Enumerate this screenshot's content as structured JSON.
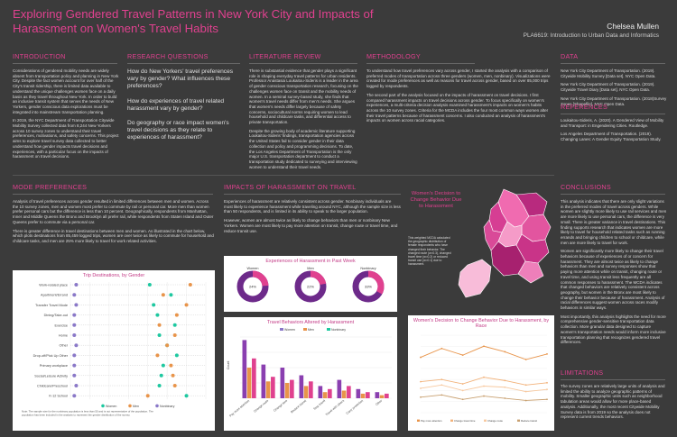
{
  "poster": {
    "title": "Exploring Gendered Travel Patterns in New York City and Impacts of Harassment on Women's Travel Habits",
    "author": "Chelsea Mullen",
    "course": "PLA6619: Introduction to Urban Data and Informatics"
  },
  "headers": {
    "intro": "INTRODUCTION",
    "rq": "RESEARCH QUESTIONS",
    "lit": "LITERATURE REVIEW",
    "method": "METHODOLOGY",
    "data": "DATA",
    "refs": "REFERENCES",
    "mode": "MODE PREFERENCES",
    "impacts": "IMPACTS OF HARASSMENT ON TRAVEL",
    "conclusions": "CONCLUSIONS",
    "limitations": "LIMITATIONS"
  },
  "intro": [
    "Considerations of gendered mobility needs are widely absent from transportation policy and planning in New York City. Despite the fact women account for over half of the City's transit ridership, there is limited data available to understand the unique challenges women face on a daily basis as they travel throughout New York. In order to build an inclusive transit system that serves the needs of New Yorkers, gender conscious data explorations must be integrated into mainstream transportation planning.",
    "In 2019, the NYC Department of Transportation Citywide Mobility Survey collected data from 8,244 New Yorkers across 10 survey zones to understand their travel preferences, motivations, and safety concerns. This project aims to explore travel survey data collected to better understand how gender impacts travel decisions and experiences, with a particular focus on the impacts of harassment on travel decisions."
  ],
  "rq": [
    "How do New Yorkers' travel preferences vary by gender? What influences these preferences?",
    "How do experiences of travel related harassment vary by gender?",
    "Do geography or race impact women's travel decisions as they relate to experiences of harassment?"
  ],
  "lit": [
    "There is substantial evidence that gender plays a significant role in shaping everyday travel patterns for urban residents. Professor Anastasia Loukaitou-Sideris is a leader in the area of gender conscious transportation research, focusing on the challenges women face on transit and the mobility needs of women. In a seminal survey-based study, she finds that women's travel needs differ from men's needs. She argues that women's needs differ largely because of safety concerns, sociocultural norms requiring women to lead household and childcare tasks, and differential access to private transportation.",
    "Despite the growing body of academic literature supporting Loukaitou-Sideris' findings, transportation agencies across the United States fail to consider gender in their data collection and policy and programming decisions. To date, the Los Angeles Department of Transportation is the only major U.S. transportation department to conduct a transportation study dedicated to surveying and interviewing women to understand their travel needs."
  ],
  "method": [
    "To understand how travel preferences vary across gender, I started the analysis with a comparison of preferred modes of transportation across three genders (women, men, nonbinary). Visualizations were created for mode preferences as well as reasons for travel across gender, based on over 85,000 trips logged by respondents.",
    "The second part of the analysis focused on the impacts of harassment on travel decisions. I first compared harassment impacts on travel decisions across gender. To focus specifically on women's experiences, a multi-criteria decision analysis examined harassment's impacts on women's habits across the 10 survey zones. Criteria for the MCDA includes the four most common ways women alter their travel patterns because of harassment concerns. I also conducted an analysis of harassment's impacts on women across racial categories."
  ],
  "data": [
    "New York City Department of Transportation. (2019). Citywide Mobility Survey [Data set]. NYC Open Data.",
    "New York City Department of Transportation. (2019). Citywide Travel Diary [Data set]. NYC Open Data.",
    "New York City Department of Transportation. (2018)Survey Zones [Shapefile]. NYC Open Data."
  ],
  "refs": [
    "Loukaitou-Sideris, A. (2020). A Gendered View of Mobility and Transport: in Engendering Cities. Routledge.",
    "Los Angeles Department of Transportation. (2019). Changing Lanes: A Gender Equity Transportation Study."
  ],
  "mode": [
    "Analysis of travel preferences across gender resulted in limited differences between men and women. Across the 10 survey zones, men and women most prefer to commute by rail or personal car. More men than women prefer personal cars but the difference is less than 10 percent. Geographically, respondents from Manhattan, Inner and Middle Queens the Bronx and Brooklyn all prefer rail, while respondents from Staten Island and Outer Queens prefer to commute via a personal car.",
    "There is greater difference in travel destinations between men and women. As illustrated in the chart below, which plots destinations from 85,459 logged trips, women are over twice as likely to commute for household and childcare tasks, and men are 25% more likely to travel for work related activities."
  ],
  "impacts": [
    "Experiences of harassment are relatively consistent across gender. Nonbinary individuals are most likely to experience harassment while traveling around NYC, although the sample size is less than 50 respondents, and is limited in its ability to speak to the larger population.",
    "However, women are almost twice as likely to change behaviors than men or nonbinary New Yorkers. Women are most likely to pay more attention on transit, change route or travel time, and reduce transit use."
  ],
  "conclusions": [
    "This analysis indicates that there are only slight variations in the preferred modes of travel across genders. While women are slightly more likely to use rail services and men are more likely to use personal cars, the difference is very small. There is greater variance in travel destinations. This finding supports research that indicates women are more likely to travel for household related tasks such as running errands and bringing children to school or childcare, while men are more likely to travel for work.",
    "Women are significantly more likely to change their travel behaviors because of experiences of or concern for harassment. They are almost twice as likely to change behaviors than men and survey responses show that paying more attention while on transit, changing route or travel time, and using transit less frequently are all common responses to harassment. The MCDA indicates that changed behaviors are relatively consistent across geography, but women in the Bronx are most likely to change their behavior because of harassment. Analysis of racial differences suggest women across races modify behaviors in similar ways.",
    "Most importantly, this analysis highlights the need for more comprehensive gender-sensitive transportation data collection. More granular data designed to capture women's transportation needs would inform more inclusive transportation planning that recognizes gendered travel differences."
  ],
  "limitations": [
    "The survey zones are relatively large units of analysis and limited the ability to analyze geographic patterns of mobility. Smaller geographic units such as neighborhood tabulation areas would allow for more place-based analysis. Additionally, the most recent Citywide Mobility Survey data is from 2019 so the analysis does not represent current trends behaviors."
  ],
  "map": {
    "title": "Women's Decision to Change Behavior Due to Harassment",
    "note": "This weighted MCDA calculated the geographic distribution of female respondents who have changed their behavior. The changed route (w=0.3), changed travel time (w=0.2) or reduced transit use (w=0.1) due to harassment."
  },
  "colors": {
    "women": "#1ec8a0",
    "men": "#e8944a",
    "nonbinary": "#8a78c8",
    "accent": "#e0418f"
  },
  "chart_data": [
    {
      "type": "scatter",
      "title": "Trip Destinations, by Gender",
      "categories": [
        "Work-related place",
        "Apartment/Errand",
        "Transfer Travel Mode",
        "Dining/Take-out",
        "Exercise",
        "Home",
        "Other",
        "Drop-off/Pick Up Other",
        "Primary workplace",
        "Social/Leisure Activity",
        "Childcare/Preschool",
        "K-12 School"
      ],
      "series": [
        {
          "name": "Women",
          "values": [
            41,
            52,
            43,
            45,
            54,
            46,
            50,
            55,
            48,
            47,
            46,
            60
          ]
        },
        {
          "name": "Men",
          "values": [
            62,
            48,
            60,
            55,
            46,
            54,
            50,
            45,
            52,
            53,
            54,
            40
          ]
        },
        {
          "name": "Nonbinary",
          "values": [
            3,
            2,
            3,
            2,
            2,
            2,
            3,
            2,
            2,
            2,
            3,
            2
          ]
        }
      ],
      "legend": [
        "Women",
        "Men",
        "Nonbinary"
      ],
      "note": "Note: The sample size for the nonbinary population is less than 50 and is not representative of the population. The population has been included in the analysis to represent the gender distribution of the survey."
    },
    {
      "type": "pie",
      "title": "Experiences of Harassment in Past Week",
      "groups": [
        "Women",
        "Men",
        "Nonbinary"
      ],
      "values": [
        24,
        22,
        33
      ]
    },
    {
      "type": "bar",
      "title": "Travel Behaviors Altered by Harassment",
      "categories": [
        "Pay more attention",
        "Change route",
        "Change time",
        "Reduce transit",
        "Stop travel",
        "Travel with others",
        "Carry protection",
        "Other"
      ],
      "series": [
        {
          "name": "Women",
          "values": [
            38,
            22,
            20,
            15,
            8,
            12,
            6,
            4
          ]
        },
        {
          "name": "Men",
          "values": [
            20,
            11,
            10,
            8,
            4,
            5,
            3,
            2
          ]
        },
        {
          "name": "Nonbinary",
          "values": [
            26,
            14,
            12,
            11,
            6,
            8,
            4,
            3
          ]
        }
      ],
      "ylabel": "Count",
      "ylim": [
        0,
        40
      ]
    },
    {
      "type": "line",
      "title": "Women's Decision to Change Behavior Due to Harassment, by Race",
      "categories": [
        "A",
        "B",
        "C",
        "D",
        "E",
        "F",
        "G"
      ],
      "series": [
        {
          "name": "Pay more attention",
          "values": [
            50,
            58,
            52,
            60,
            55,
            48,
            53
          ]
        },
        {
          "name": "Change travel time",
          "values": [
            28,
            30,
            26,
            32,
            29,
            25,
            27
          ]
        },
        {
          "name": "Change route",
          "values": [
            22,
            25,
            20,
            24,
            23,
            19,
            21
          ]
        },
        {
          "name": "Reduce transit",
          "values": [
            14,
            16,
            12,
            15,
            13,
            11,
            12
          ]
        }
      ],
      "ylim": [
        0,
        70
      ]
    }
  ]
}
